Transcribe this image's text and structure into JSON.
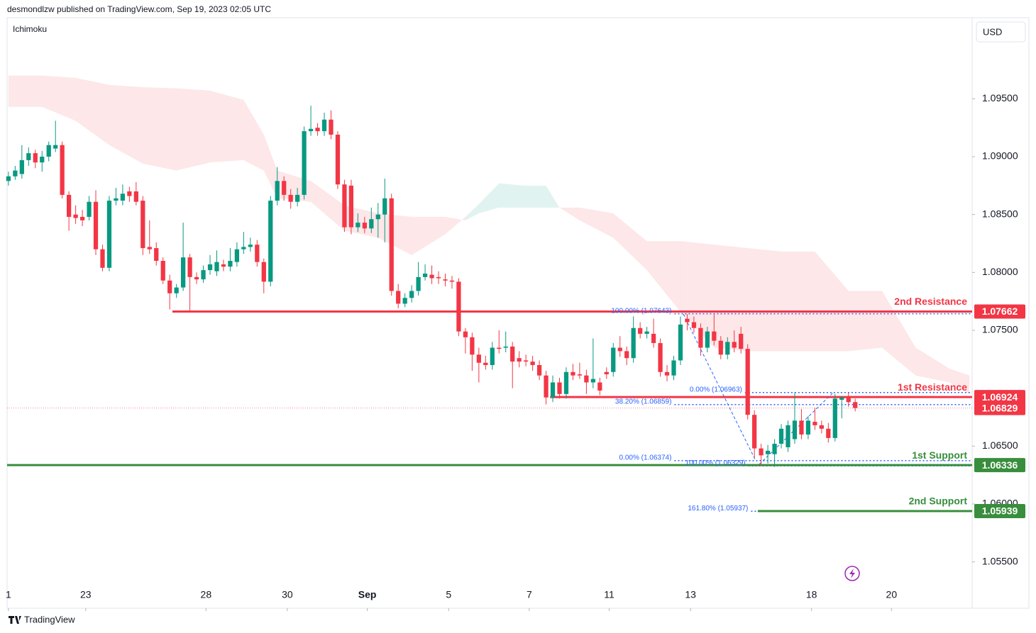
{
  "chart_data": {
    "type": "candlestick",
    "header": "desmondlzw published on TradingView.com, Sep 19, 2023 02:05 UTC",
    "indicator": "Ichimoku",
    "currency": "USD",
    "brand": "TradingView",
    "xlim": [
      -0.2,
      143.4
    ],
    "ylim": [
      1.051,
      1.102
    ],
    "xticks": [
      {
        "value": 0,
        "label": "1"
      },
      {
        "value": 11.5,
        "label": "23"
      },
      {
        "value": 29.4,
        "label": "28"
      },
      {
        "value": 41.5,
        "label": "30"
      },
      {
        "value": 53.4,
        "label": "Sep"
      },
      {
        "value": 65.5,
        "label": "5"
      },
      {
        "value": 77.5,
        "label": "7"
      },
      {
        "value": 89.4,
        "label": "11"
      },
      {
        "value": 101.5,
        "label": "13"
      },
      {
        "value": 119.5,
        "label": "18"
      },
      {
        "value": 131.4,
        "label": "20"
      }
    ],
    "yticks": [
      {
        "value": 1.095,
        "label": "1.09500"
      },
      {
        "value": 1.09,
        "label": "1.09000"
      },
      {
        "value": 1.085,
        "label": "1.08500"
      },
      {
        "value": 1.08,
        "label": "1.08000"
      },
      {
        "value": 1.075,
        "label": "1.07500"
      },
      {
        "value": 1.065,
        "label": "1.06500"
      },
      {
        "value": 1.06,
        "label": "1.06000"
      },
      {
        "value": 1.055,
        "label": "1.05500"
      }
    ],
    "up_color": "#089981",
    "down_color": "#f23645",
    "candles": [
      [
        1.0879,
        1.0887,
        1.0875,
        1.0883
      ],
      [
        1.0883,
        1.0892,
        1.088,
        1.0888
      ],
      [
        1.0885,
        1.091,
        1.0881,
        1.0897
      ],
      [
        1.0897,
        1.0908,
        1.0892,
        1.0903
      ],
      [
        1.0903,
        1.0906,
        1.089,
        1.0895
      ],
      [
        1.0895,
        1.0905,
        1.0887,
        1.09
      ],
      [
        1.09,
        1.0913,
        1.0896,
        1.091
      ],
      [
        1.0907,
        1.0931,
        1.0904,
        1.091
      ],
      [
        1.091,
        1.0913,
        1.0864,
        1.0867
      ],
      [
        1.0867,
        1.087,
        1.0836,
        1.0848
      ],
      [
        1.085,
        1.0858,
        1.0842,
        1.0847
      ],
      [
        1.0848,
        1.0854,
        1.084,
        1.0845
      ],
      [
        1.0848,
        1.0866,
        1.0845,
        1.0861
      ],
      [
        1.0861,
        1.0871,
        1.0815,
        1.082
      ],
      [
        1.082,
        1.0824,
        1.0801,
        1.0804
      ],
      [
        1.0804,
        1.0866,
        1.0801,
        1.0862
      ],
      [
        1.0862,
        1.0873,
        1.0858,
        1.0864
      ],
      [
        1.0862,
        1.0876,
        1.0858,
        1.0868
      ],
      [
        1.087,
        1.0874,
        1.0861,
        1.0866
      ],
      [
        1.087,
        1.0878,
        1.0858,
        1.0861
      ],
      [
        1.0862,
        1.0866,
        1.0815,
        1.0821
      ],
      [
        1.0822,
        1.0845,
        1.0816,
        1.082
      ],
      [
        1.0821,
        1.0826,
        1.0806,
        1.081
      ],
      [
        1.081,
        1.0813,
        1.079,
        1.0793
      ],
      [
        1.0793,
        1.0798,
        1.0768,
        1.0782
      ],
      [
        1.0782,
        1.079,
        1.0778,
        1.0787
      ],
      [
        1.0787,
        1.0843,
        1.0784,
        1.0813
      ],
      [
        1.0813,
        1.0816,
        1.0766,
        1.0796
      ],
      [
        1.0796,
        1.08,
        1.079,
        1.0794
      ],
      [
        1.0794,
        1.0806,
        1.0791,
        1.0802
      ],
      [
        1.0802,
        1.0815,
        1.0798,
        1.0807
      ],
      [
        1.0801,
        1.0819,
        1.0797,
        1.0809
      ],
      [
        1.0807,
        1.0811,
        1.0801,
        1.0805
      ],
      [
        1.0805,
        1.0821,
        1.0801,
        1.081
      ],
      [
        1.0809,
        1.0826,
        1.0805,
        1.082
      ],
      [
        1.082,
        1.0835,
        1.0816,
        1.0822
      ],
      [
        1.0822,
        1.083,
        1.0818,
        1.0824
      ],
      [
        1.0824,
        1.0828,
        1.0805,
        1.0809
      ],
      [
        1.0809,
        1.0812,
        1.0782,
        1.0792
      ],
      [
        1.0792,
        1.0866,
        1.0788,
        1.0862
      ],
      [
        1.0862,
        1.0891,
        1.0858,
        1.0879
      ],
      [
        1.0879,
        1.0883,
        1.0862,
        1.0867
      ],
      [
        1.0867,
        1.0872,
        1.0855,
        1.0861
      ],
      [
        1.0861,
        1.0873,
        1.0857,
        1.0867
      ],
      [
        1.0867,
        1.0926,
        1.0863,
        1.0922
      ],
      [
        1.0922,
        1.0944,
        1.0918,
        1.0924
      ],
      [
        1.0925,
        1.0929,
        1.0918,
        1.0922
      ],
      [
        1.0922,
        1.0938,
        1.0918,
        1.0932
      ],
      [
        1.0932,
        1.094,
        1.0915,
        1.0919
      ],
      [
        1.0919,
        1.0922,
        1.0872,
        1.0876
      ],
      [
        1.0876,
        1.088,
        1.0835,
        1.0839
      ],
      [
        1.0875,
        1.088,
        1.0833,
        1.0839
      ],
      [
        1.0839,
        1.0851,
        1.0835,
        1.0843
      ],
      [
        1.0843,
        1.0848,
        1.0834,
        1.0838
      ],
      [
        1.0838,
        1.0856,
        1.0834,
        1.0846
      ],
      [
        1.0846,
        1.086,
        1.083,
        1.085
      ],
      [
        1.085,
        1.0881,
        1.0826,
        1.0864
      ],
      [
        1.0864,
        1.0868,
        1.078,
        1.0784
      ],
      [
        1.0784,
        1.079,
        1.0769,
        1.0773
      ],
      [
        1.0773,
        1.0782,
        1.077,
        1.0778
      ],
      [
        1.0778,
        1.0789,
        1.0774,
        1.0784
      ],
      [
        1.0784,
        1.0809,
        1.078,
        1.0796
      ],
      [
        1.0796,
        1.0807,
        1.0793,
        1.0799
      ],
      [
        1.0798,
        1.0806,
        1.079,
        1.0795
      ],
      [
        1.0796,
        1.0801,
        1.079,
        1.0795
      ],
      [
        1.0794,
        1.0799,
        1.0788,
        1.0793
      ],
      [
        1.0793,
        1.0797,
        1.0786,
        1.0792
      ],
      [
        1.0792,
        1.0795,
        1.0745,
        1.0749
      ],
      [
        1.0749,
        1.0752,
        1.073,
        1.0744
      ],
      [
        1.0744,
        1.0748,
        1.0715,
        1.0729
      ],
      [
        1.0729,
        1.0735,
        1.0705,
        1.0722
      ],
      [
        1.0722,
        1.0728,
        1.0716,
        1.072
      ],
      [
        1.072,
        1.074,
        1.0716,
        1.0735
      ],
      [
        1.0735,
        1.075,
        1.073,
        1.0734
      ],
      [
        1.0735,
        1.0749,
        1.0731,
        1.0736
      ],
      [
        1.0736,
        1.074,
        1.07,
        1.0723
      ],
      [
        1.0726,
        1.0732,
        1.0718,
        1.0723
      ],
      [
        1.0724,
        1.0729,
        1.0719,
        1.0723
      ],
      [
        1.0723,
        1.0728,
        1.0715,
        1.072
      ],
      [
        1.072,
        1.0724,
        1.0707,
        1.0711
      ],
      [
        1.0711,
        1.0715,
        1.0686,
        1.0692
      ],
      [
        1.0692,
        1.0711,
        1.0688,
        1.0705
      ],
      [
        1.0705,
        1.0709,
        1.0691,
        1.0695
      ],
      [
        1.0695,
        1.0718,
        1.0691,
        1.0714
      ],
      [
        1.0714,
        1.0721,
        1.0707,
        1.0711
      ],
      [
        1.0712,
        1.0722,
        1.0708,
        1.0711
      ],
      [
        1.0711,
        1.0716,
        1.0695,
        1.0705
      ],
      [
        1.0705,
        1.0743,
        1.07,
        1.0708
      ],
      [
        1.0705,
        1.0709,
        1.0694,
        1.0698
      ],
      [
        1.0714,
        1.0718,
        1.0708,
        1.0712
      ],
      [
        1.0714,
        1.0739,
        1.071,
        1.0735
      ],
      [
        1.0735,
        1.0745,
        1.0727,
        1.0732
      ],
      [
        1.0732,
        1.0736,
        1.072,
        1.0726
      ],
      [
        1.0726,
        1.0762,
        1.0722,
        1.0752
      ],
      [
        1.0752,
        1.0757,
        1.0743,
        1.0747
      ],
      [
        1.0747,
        1.0753,
        1.0743,
        1.0749
      ],
      [
        1.0747,
        1.076,
        1.0735,
        1.0739
      ],
      [
        1.0739,
        1.0743,
        1.071,
        1.0714
      ],
      [
        1.0714,
        1.072,
        1.0706,
        1.0711
      ],
      [
        1.0711,
        1.0728,
        1.0707,
        1.0724
      ],
      [
        1.0724,
        1.0762,
        1.072,
        1.0755
      ],
      [
        1.076,
        1.0764,
        1.075,
        1.0757
      ],
      [
        1.0757,
        1.0762,
        1.0748,
        1.0752
      ],
      [
        1.0752,
        1.0756,
        1.0728,
        1.0735
      ],
      [
        1.0735,
        1.0753,
        1.0731,
        1.0749
      ],
      [
        1.0749,
        1.0764,
        1.0737,
        1.0741
      ],
      [
        1.0741,
        1.0745,
        1.0725,
        1.0729
      ],
      [
        1.0729,
        1.0744,
        1.0725,
        1.074
      ],
      [
        1.074,
        1.075,
        1.0731,
        1.0735
      ],
      [
        1.0747,
        1.0753,
        1.073,
        1.0734
      ],
      [
        1.0734,
        1.0738,
        1.0673,
        1.0677
      ],
      [
        1.0677,
        1.0681,
        1.064,
        1.0648
      ],
      [
        1.0648,
        1.0652,
        1.0633,
        1.0642
      ],
      [
        1.0643,
        1.0651,
        1.0635,
        1.0646
      ],
      [
        1.0643,
        1.0656,
        1.0632,
        1.0652
      ],
      [
        1.0652,
        1.0669,
        1.0648,
        1.0665
      ],
      [
        1.0649,
        1.0672,
        1.0645,
        1.0668
      ],
      [
        1.0656,
        1.0696,
        1.0652,
        1.0672
      ],
      [
        1.0672,
        1.0682,
        1.0656,
        1.066
      ],
      [
        1.066,
        1.0676,
        1.0656,
        1.0672
      ],
      [
        1.0671,
        1.0683,
        1.0664,
        1.0668
      ],
      [
        1.0668,
        1.0672,
        1.0661,
        1.0665
      ],
      [
        1.0665,
        1.067,
        1.0653,
        1.0657
      ],
      [
        1.0657,
        1.0695,
        1.0654,
        1.0691
      ],
      [
        1.069,
        1.0693,
        1.0674,
        1.0692
      ],
      [
        1.0692,
        1.0696,
        1.0684,
        1.0688
      ],
      [
        1.0688,
        1.0691,
        1.068,
        1.06829
      ]
    ],
    "cloud": {
      "up_color": "#089981",
      "down_color": "#f23645",
      "x": [
        0,
        5,
        10,
        15,
        20,
        25,
        30,
        35,
        38,
        40,
        45,
        50,
        55,
        60,
        65,
        68,
        70,
        73,
        77,
        80,
        82,
        85,
        90,
        95,
        100,
        105,
        110,
        115,
        120,
        125,
        130,
        135,
        140,
        143
      ],
      "span_a": [
        1.0943,
        1.0943,
        1.0931,
        1.091,
        1.0894,
        1.0888,
        1.0895,
        1.0897,
        1.0888,
        1.0864,
        1.0861,
        1.0836,
        1.083,
        1.0815,
        1.0833,
        1.0848,
        1.0859,
        1.0877,
        1.0875,
        1.0875,
        1.0856,
        1.0845,
        1.083,
        1.0802,
        1.0766,
        1.0735,
        1.0732,
        1.0732,
        1.0732,
        1.0732,
        1.0735,
        1.0711,
        1.0705,
        1.0695
      ],
      "span_b": [
        1.097,
        1.097,
        1.0968,
        1.0962,
        1.096,
        1.0959,
        1.0957,
        1.0949,
        1.0919,
        1.0888,
        1.0879,
        1.0858,
        1.0851,
        1.0848,
        1.0848,
        1.0845,
        1.0851,
        1.0856,
        1.0856,
        1.0856,
        1.0856,
        1.0856,
        1.0851,
        1.0827,
        1.0827,
        1.0824,
        1.0821,
        1.0818,
        1.0818,
        1.0784,
        1.0784,
        1.0735,
        1.0717,
        1.0711
      ]
    },
    "levels": [
      {
        "name": "2nd Resistance",
        "value": 1.07662,
        "color": "#f23645",
        "from": 24.4
      },
      {
        "name": "1st Resistance",
        "value": 1.06924,
        "color": "#f23645",
        "from": 80.6
      },
      {
        "name": "1st Support",
        "value": 1.06336,
        "color": "#388e3c",
        "from": -0.2
      },
      {
        "name": "2nd Support",
        "value": 1.05939,
        "color": "#388e3c",
        "from": 111.5
      }
    ],
    "price": {
      "value": 1.06829,
      "color": "#f23645"
    },
    "fib_color": "#2962ff",
    "fibs": [
      {
        "label": "100.00% (1.07643)",
        "value": 1.07643,
        "from": 99.1
      },
      {
        "label": "0.00% (1.06963)",
        "value": 1.06963,
        "from": 109.6
      },
      {
        "label": "38.20% (1.06859)",
        "value": 1.06859,
        "from": 99.1
      },
      {
        "label": "0.00% (1.06374)",
        "value": 1.06374,
        "from": 99.1
      },
      {
        "label": "100.00% (1.06329)",
        "value": 1.06329,
        "from": 110.1
      },
      {
        "label": "161.80% (1.05937)",
        "value": 1.05937,
        "from": 110.5
      }
    ]
  }
}
